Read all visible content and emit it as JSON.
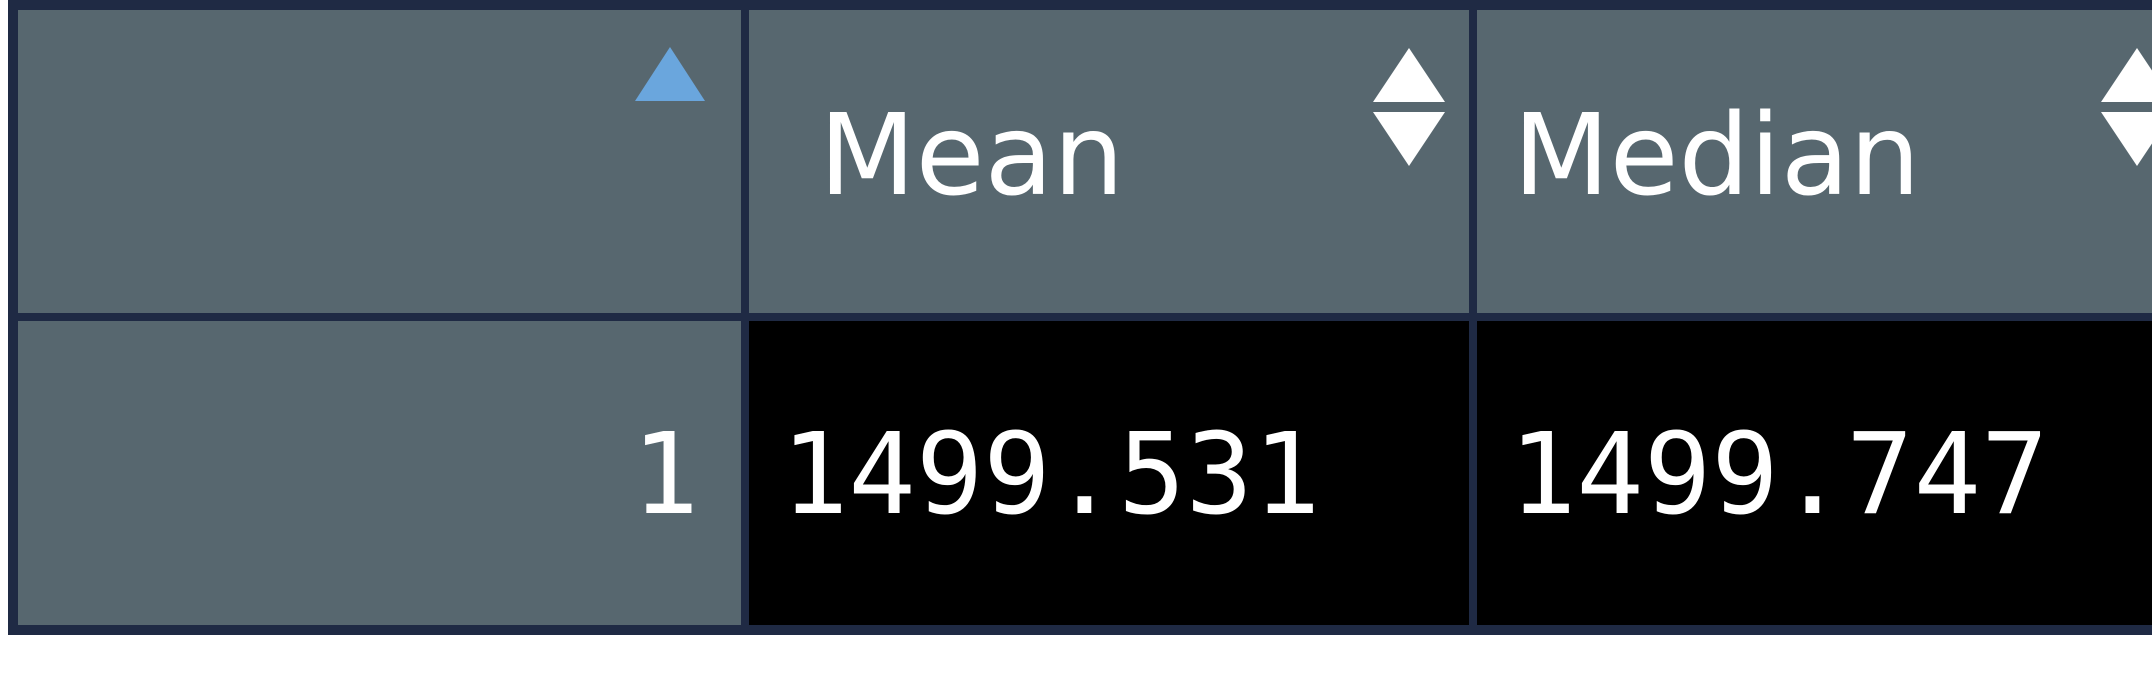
{
  "table": {
    "columns": [
      {
        "label": "",
        "sort": "ascending",
        "icon": "sort-ascending-icon"
      },
      {
        "label": "Mean",
        "sort": "none",
        "icon": "sort-both-icon"
      },
      {
        "label": "Median",
        "sort": "none",
        "icon": "sort-both-icon"
      }
    ],
    "rows": [
      {
        "index": "1",
        "mean": "1499.531",
        "median": "1499.747"
      }
    ]
  },
  "colors": {
    "header_bg": "#57676f",
    "data_bg": "#000000",
    "grid": "#1f2a44",
    "sort_active": "#6aa6dd",
    "text": "#ffffff"
  }
}
